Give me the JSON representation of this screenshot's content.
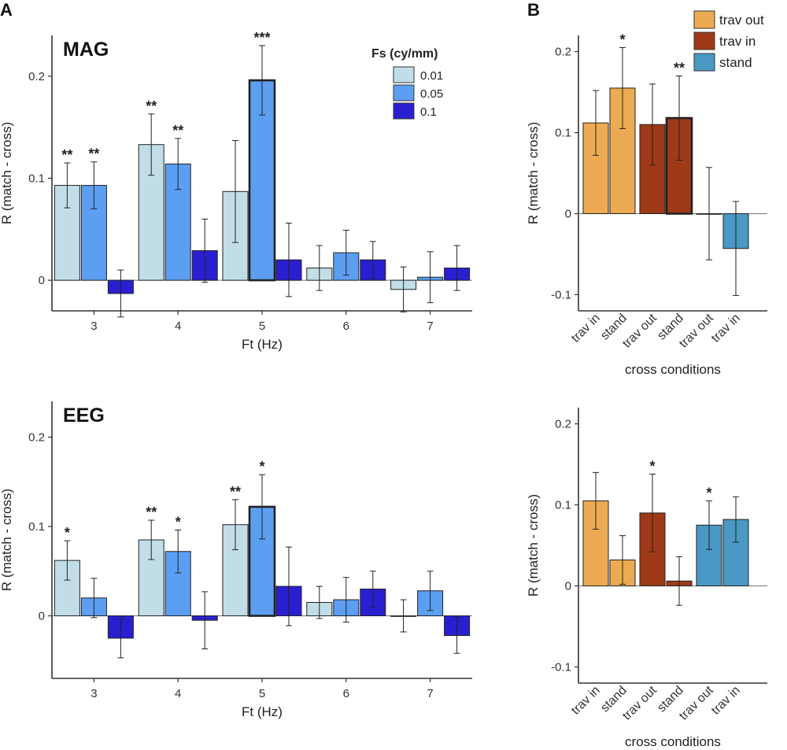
{
  "panel_labels": {
    "a": "A",
    "b": "B"
  },
  "colors": {
    "fs_0.01": "#c1dee8",
    "fs_0.05": "#5c9ef2",
    "fs_0.1": "#2a1fd0",
    "trav_out": "#ecab52",
    "trav_in": "#9e3a17",
    "stand": "#4a98c4"
  },
  "chart_data": [
    {
      "id": "mag_ft",
      "type": "bar",
      "title": "MAG",
      "xlabel": "Ft (Hz)",
      "ylabel": "R (match - cross)",
      "ylim": [
        -0.03,
        0.24
      ],
      "yticks": [
        0,
        0.1,
        0.2
      ],
      "ytick_labels": [
        "0",
        "0.1",
        "0.2"
      ],
      "categories": [
        "3",
        "4",
        "5",
        "6",
        "7"
      ],
      "legend": {
        "title": "Fs (cy/mm)",
        "position": "top-right"
      },
      "series": [
        {
          "name": "0.01",
          "color_key": "fs_0.01",
          "values": [
            0.093,
            0.133,
            0.087,
            0.012,
            -0.009
          ],
          "errors": [
            0.022,
            0.03,
            0.05,
            0.022,
            0.022
          ],
          "sig": [
            "**",
            "**",
            "",
            "",
            ""
          ],
          "bold": [
            false,
            false,
            false,
            false,
            false
          ]
        },
        {
          "name": "0.05",
          "color_key": "fs_0.05",
          "values": [
            0.093,
            0.114,
            0.196,
            0.027,
            0.003
          ],
          "errors": [
            0.023,
            0.025,
            0.034,
            0.022,
            0.025
          ],
          "sig": [
            "**",
            "**",
            "***",
            "",
            ""
          ],
          "bold": [
            false,
            false,
            true,
            false,
            false
          ]
        },
        {
          "name": "0.1",
          "color_key": "fs_0.1",
          "values": [
            -0.013,
            0.029,
            0.02,
            0.02,
            0.012
          ],
          "errors": [
            0.023,
            0.031,
            0.036,
            0.018,
            0.022
          ],
          "sig": [
            "",
            "",
            "",
            "",
            ""
          ],
          "bold": [
            false,
            false,
            false,
            false,
            false
          ]
        }
      ]
    },
    {
      "id": "eeg_ft",
      "type": "bar",
      "title": "EEG",
      "xlabel": "Ft (Hz)",
      "ylabel": "R (match - cross)",
      "ylim": [
        -0.07,
        0.24
      ],
      "yticks": [
        0,
        0.1,
        0.2
      ],
      "ytick_labels": [
        "0",
        "0.1",
        "0.2"
      ],
      "categories": [
        "3",
        "4",
        "5",
        "6",
        "7"
      ],
      "series": [
        {
          "name": "0.01",
          "color_key": "fs_0.01",
          "values": [
            0.062,
            0.085,
            0.102,
            0.015,
            0
          ],
          "errors": [
            0.022,
            0.022,
            0.028,
            0.018,
            0.018
          ],
          "sig": [
            "*",
            "**",
            "**",
            "",
            ""
          ],
          "bold": [
            false,
            false,
            false,
            false,
            false
          ]
        },
        {
          "name": "0.05",
          "color_key": "fs_0.05",
          "values": [
            0.02,
            0.072,
            0.122,
            0.018,
            0.028
          ],
          "errors": [
            0.022,
            0.024,
            0.036,
            0.025,
            0.022
          ],
          "sig": [
            "",
            "*",
            "*",
            "",
            ""
          ],
          "bold": [
            false,
            false,
            true,
            false,
            false
          ]
        },
        {
          "name": "0.1",
          "color_key": "fs_0.1",
          "values": [
            -0.025,
            -0.005,
            0.033,
            0.03,
            -0.022
          ],
          "errors": [
            0.022,
            0.032,
            0.044,
            0.02,
            0.02
          ],
          "sig": [
            "",
            "",
            "",
            "",
            ""
          ],
          "bold": [
            false,
            false,
            false,
            false,
            false
          ]
        }
      ]
    },
    {
      "id": "mag_cross",
      "type": "bar",
      "xlabel": "cross conditions",
      "ylabel": "R (match - cross)",
      "ylim": [
        -0.12,
        0.22
      ],
      "yticks": [
        -0.1,
        0,
        0.1,
        0.2
      ],
      "ytick_labels": [
        "-0.1",
        "0",
        "0.1",
        "0.2"
      ],
      "legend": {
        "position": "top-right"
      },
      "groups": [
        {
          "name": "trav out",
          "color_key": "trav_out",
          "bars": [
            {
              "label": "trav in",
              "value": 0.112,
              "error": 0.04,
              "sig": "",
              "bold": false
            },
            {
              "label": "stand",
              "value": 0.155,
              "error": 0.05,
              "sig": "*",
              "bold": false
            }
          ]
        },
        {
          "name": "trav in",
          "color_key": "trav_in",
          "bars": [
            {
              "label": "trav out",
              "value": 0.11,
              "error": 0.05,
              "sig": "",
              "bold": false
            },
            {
              "label": "stand",
              "value": 0.118,
              "error": 0.052,
              "sig": "**",
              "bold": true
            }
          ]
        },
        {
          "name": "stand",
          "color_key": "stand",
          "bars": [
            {
              "label": "trav out",
              "value": 0,
              "error": 0.057,
              "sig": "",
              "bold": false
            },
            {
              "label": "trav in",
              "value": -0.043,
              "error": 0.058,
              "sig": "",
              "bold": false
            }
          ]
        }
      ]
    },
    {
      "id": "eeg_cross",
      "type": "bar",
      "xlabel": "cross conditions",
      "ylabel": "R (match - cross)",
      "ylim": [
        -0.12,
        0.22
      ],
      "yticks": [
        -0.1,
        0,
        0.1,
        0.2
      ],
      "ytick_labels": [
        "-0.1",
        "0",
        "0.1",
        "0.2"
      ],
      "groups": [
        {
          "name": "trav out",
          "color_key": "trav_out",
          "bars": [
            {
              "label": "trav in",
              "value": 0.105,
              "error": 0.035,
              "sig": "",
              "bold": false
            },
            {
              "label": "stand",
              "value": 0.032,
              "error": 0.03,
              "sig": "",
              "bold": false
            }
          ]
        },
        {
          "name": "trav in",
          "color_key": "trav_in",
          "bars": [
            {
              "label": "trav out",
              "value": 0.09,
              "error": 0.048,
              "sig": "*",
              "bold": false
            },
            {
              "label": "stand",
              "value": 0.006,
              "error": 0.03,
              "sig": "",
              "bold": false
            }
          ]
        },
        {
          "name": "stand",
          "color_key": "stand",
          "bars": [
            {
              "label": "trav out",
              "value": 0.075,
              "error": 0.03,
              "sig": "*",
              "bold": false
            },
            {
              "label": "trav in",
              "value": 0.082,
              "error": 0.028,
              "sig": "",
              "bold": false
            }
          ]
        }
      ]
    }
  ]
}
